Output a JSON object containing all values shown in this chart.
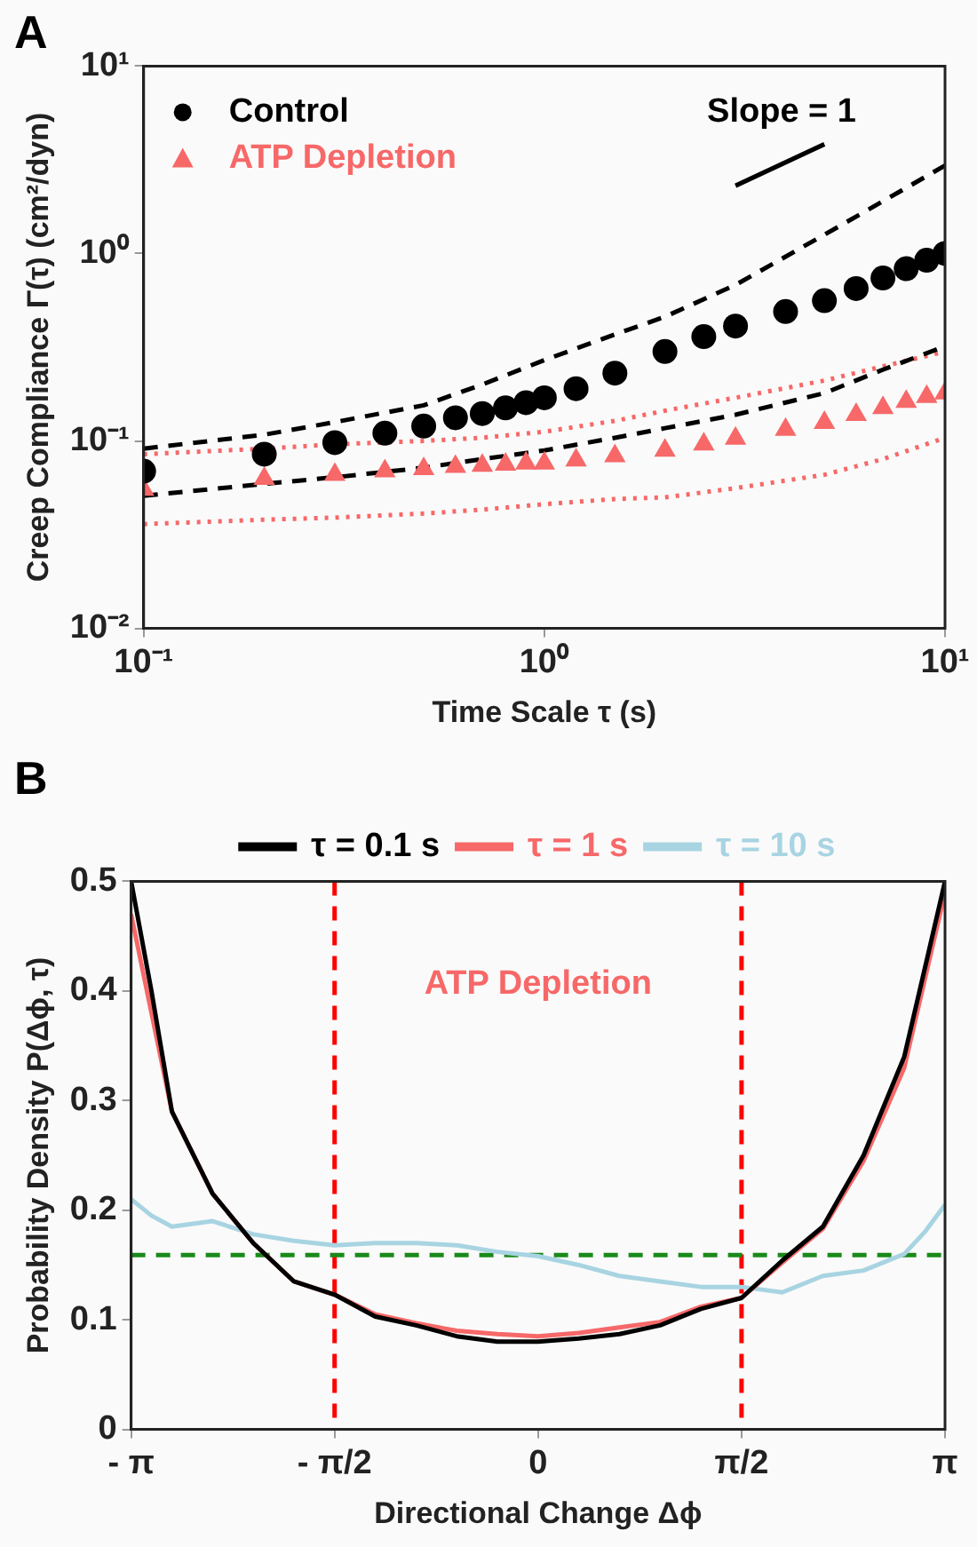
{
  "chart_data": [
    {
      "type": "scatter",
      "title": "A",
      "xlabel": "Time Scale τ (s)",
      "ylabel": "Creep Compliance Γ(τ) (cm²/dyn)",
      "log": "xy",
      "xlim": [
        0.1,
        10
      ],
      "ylim": [
        0.01,
        10
      ],
      "xticks": [
        {
          "value": 0.1,
          "label": "10⁻¹"
        },
        {
          "value": 1,
          "label": "10⁰"
        },
        {
          "value": 10,
          "label": "10¹"
        }
      ],
      "yticks": [
        {
          "value": 0.01,
          "label": "10⁻²"
        },
        {
          "value": 0.1,
          "label": "10⁻¹"
        },
        {
          "value": 1,
          "label": "10⁰"
        },
        {
          "value": 10,
          "label": "10¹"
        }
      ],
      "grid": false,
      "legend": "top left",
      "annotations": [
        "Slope = 1"
      ],
      "series": [
        {
          "name": "Control",
          "type": "scatter",
          "marker": "circle",
          "color": "#000000",
          "x": [
            0.1,
            0.2,
            0.3,
            0.4,
            0.5,
            0.6,
            0.7,
            0.8,
            0.9,
            1,
            1.2,
            1.5,
            2,
            2.5,
            3,
            4,
            5,
            6,
            7,
            8,
            9,
            10
          ],
          "values": [
            0.069,
            0.085,
            0.098,
            0.11,
            0.12,
            0.133,
            0.14,
            0.15,
            0.16,
            0.17,
            0.19,
            0.23,
            0.3,
            0.36,
            0.41,
            0.49,
            0.56,
            0.65,
            0.74,
            0.83,
            0.92,
            1.0
          ]
        },
        {
          "name": "ATP Depletion",
          "type": "scatter",
          "marker": "triangle",
          "color": "#f76868",
          "x": [
            0.1,
            0.2,
            0.3,
            0.4,
            0.5,
            0.6,
            0.7,
            0.8,
            0.9,
            1,
            1.2,
            1.5,
            2,
            2.5,
            3,
            4,
            5,
            6,
            7,
            8,
            9,
            10
          ],
          "values": [
            0.055,
            0.063,
            0.066,
            0.069,
            0.071,
            0.073,
            0.074,
            0.075,
            0.076,
            0.076,
            0.079,
            0.083,
            0.089,
            0.096,
            0.103,
            0.115,
            0.125,
            0.138,
            0.15,
            0.162,
            0.172,
            0.18
          ]
        },
        {
          "type": "line",
          "line_style": "dashed",
          "color": "#000000",
          "x": [
            0.1,
            0.2,
            0.3,
            0.5,
            0.7,
            1,
            1.5,
            2,
            3,
            5,
            7,
            10
          ],
          "values": [
            0.091,
            0.108,
            0.126,
            0.155,
            0.2,
            0.27,
            0.37,
            0.46,
            0.68,
            1.26,
            1.9,
            2.95
          ]
        },
        {
          "type": "line",
          "line_style": "dashed",
          "color": "#000000",
          "x": [
            0.1,
            0.2,
            0.3,
            0.5,
            0.7,
            1,
            1.5,
            2,
            3,
            5,
            7,
            10
          ],
          "values": [
            0.051,
            0.059,
            0.064,
            0.072,
            0.08,
            0.089,
            0.104,
            0.117,
            0.138,
            0.18,
            0.24,
            0.32
          ]
        },
        {
          "type": "line",
          "line_style": "dotted",
          "color": "#f76868",
          "x": [
            0.1,
            0.2,
            0.3,
            0.5,
            0.7,
            1,
            1.5,
            2,
            3,
            5,
            7,
            10
          ],
          "values": [
            0.085,
            0.091,
            0.096,
            0.1,
            0.104,
            0.112,
            0.128,
            0.145,
            0.17,
            0.21,
            0.25,
            0.3
          ]
        },
        {
          "type": "line",
          "line_style": "dotted",
          "color": "#f76868",
          "x": [
            0.1,
            0.2,
            0.3,
            0.5,
            0.7,
            1,
            1.5,
            2,
            3,
            5,
            7,
            10
          ],
          "values": [
            0.036,
            0.038,
            0.039,
            0.041,
            0.043,
            0.046,
            0.049,
            0.05,
            0.056,
            0.066,
            0.08,
            0.104
          ]
        },
        {
          "type": "line",
          "line_style": "solid",
          "color": "#000000",
          "x": [
            3,
            5
          ],
          "values": [
            2.3,
            3.83
          ]
        }
      ]
    },
    {
      "type": "line",
      "title": "B",
      "xlabel": "Directional Change Δϕ",
      "ylabel": "Probability Density P(Δϕ, τ)",
      "xlim": [
        -3.142,
        3.142
      ],
      "ylim": [
        0,
        0.5
      ],
      "xticks": [
        {
          "value": -3.142,
          "label": "- π"
        },
        {
          "value": -1.571,
          "label": "- π/2"
        },
        0,
        {
          "value": 1.571,
          "label": "π/2"
        },
        {
          "value": 3.142,
          "label": "π"
        }
      ],
      "yticks": [
        0,
        0.1,
        0.2,
        0.3,
        0.4,
        0.5
      ],
      "grid": false,
      "legend": "top",
      "marker": "none",
      "line_style": "solid",
      "annotations": [
        "ATP Depletion"
      ],
      "ref_lines": [
        {
          "axis": "x",
          "value": -1.571,
          "color": "#ff0000",
          "line_style": "dashed"
        },
        {
          "axis": "x",
          "value": 1.571,
          "color": "#ff0000",
          "line_style": "dashed"
        },
        {
          "axis": "y",
          "value": 0.159,
          "color": "#1a8a1a",
          "line_style": "dashed"
        }
      ],
      "x": [
        -3.142,
        -2.985,
        -2.827,
        -2.513,
        -2.199,
        -1.885,
        -1.571,
        -1.257,
        -0.942,
        -0.628,
        -0.314,
        0,
        0.314,
        0.628,
        0.942,
        1.257,
        1.571,
        1.885,
        2.199,
        2.513,
        2.827,
        2.985,
        3.142
      ],
      "series": [
        {
          "name": "τ = 0.1 s",
          "color": "#000000",
          "values": [
            0.5,
            0.4,
            0.29,
            0.215,
            0.17,
            0.135,
            0.123,
            0.103,
            0.095,
            0.085,
            0.08,
            0.08,
            0.083,
            0.087,
            0.095,
            0.11,
            0.12,
            0.154,
            0.185,
            0.25,
            0.34,
            0.42,
            0.5
          ]
        },
        {
          "name": "τ = 1 s",
          "color": "#f76868",
          "values": [
            0.47,
            0.38,
            0.29,
            0.215,
            0.17,
            0.135,
            0.123,
            0.105,
            0.097,
            0.09,
            0.087,
            0.085,
            0.088,
            0.093,
            0.098,
            0.112,
            0.12,
            0.152,
            0.183,
            0.245,
            0.33,
            0.41,
            0.49
          ]
        },
        {
          "name": "τ = 10 s",
          "color": "#a8d4e2",
          "values": [
            0.21,
            0.195,
            0.185,
            0.19,
            0.178,
            0.172,
            0.168,
            0.17,
            0.17,
            0.168,
            0.162,
            0.158,
            0.15,
            0.14,
            0.135,
            0.13,
            0.13,
            0.125,
            0.14,
            0.145,
            0.16,
            0.18,
            0.205
          ]
        }
      ]
    }
  ]
}
